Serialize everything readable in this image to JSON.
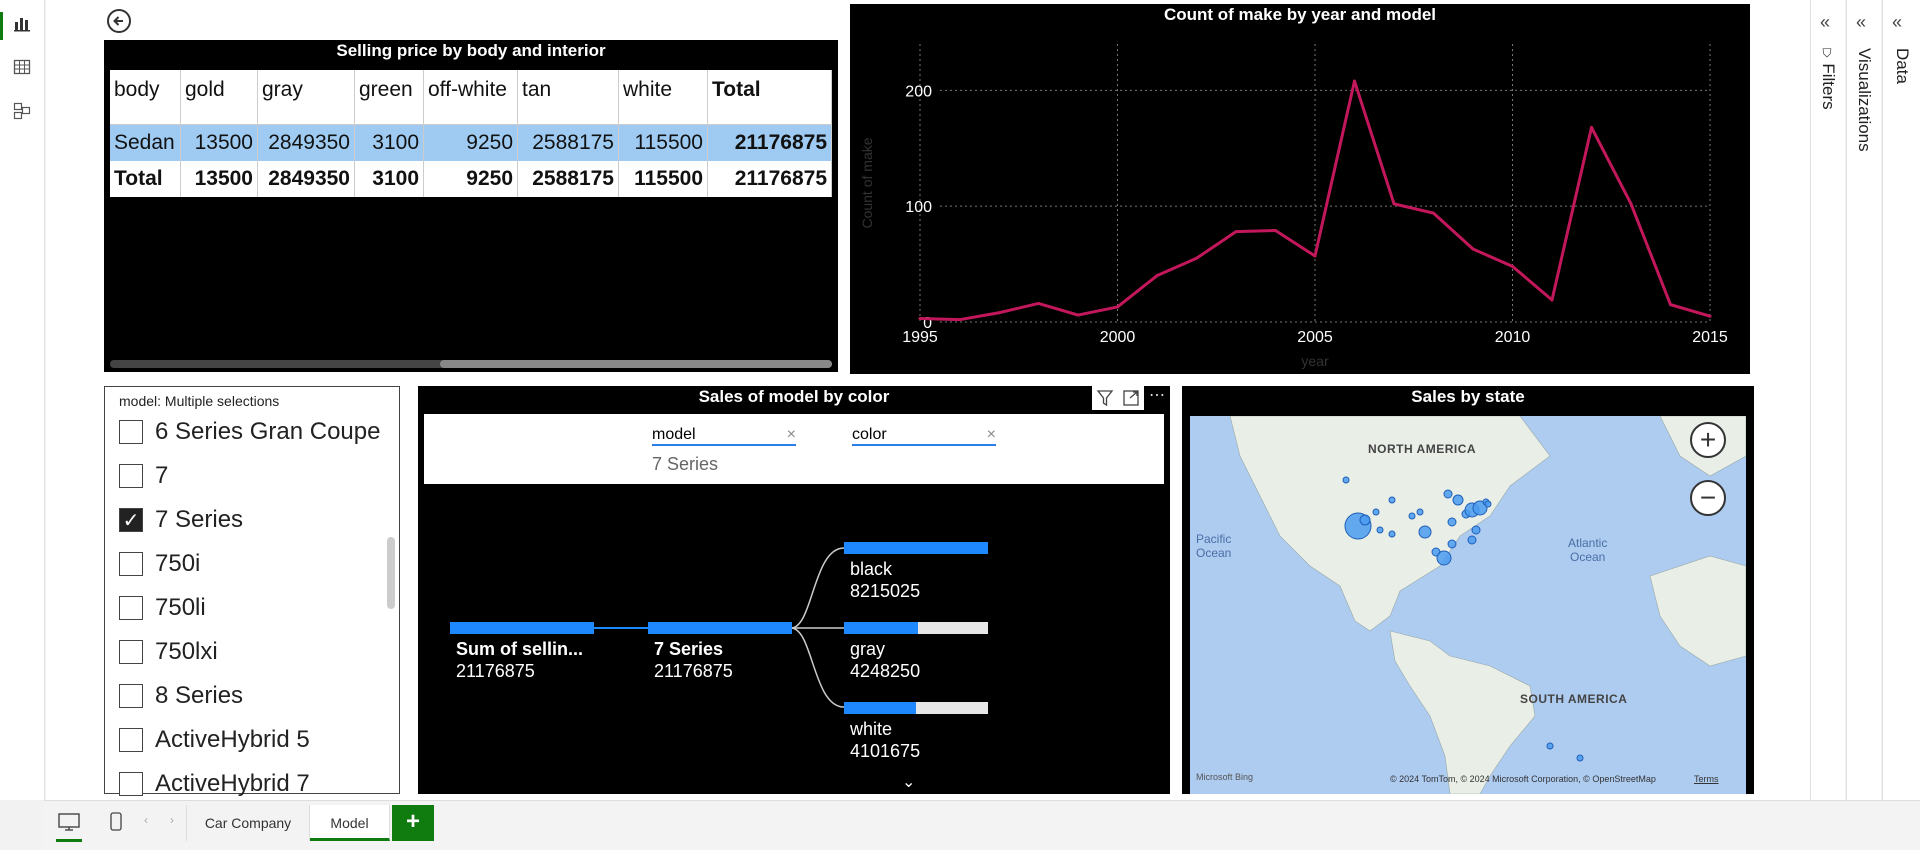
{
  "table": {
    "title": "Selling price by body and interior",
    "headers": [
      "body",
      "gold",
      "gray",
      "green",
      "off-white",
      "tan",
      "white",
      "Total"
    ],
    "rows": [
      [
        "Sedan",
        "13500",
        "2849350",
        "3100",
        "9250",
        "2588175",
        "115500",
        "21176875"
      ],
      [
        "Total",
        "13500",
        "2849350",
        "3100",
        "9250",
        "2588175",
        "115500",
        "21176875"
      ]
    ]
  },
  "line_chart_title": "Count of make by year and model",
  "chart_data": {
    "type": "line",
    "title": "Count of make by year and model",
    "xlabel": "year",
    "ylabel": "Count of make",
    "x": [
      1995,
      1996,
      1997,
      1998,
      1999,
      2000,
      2001,
      2002,
      2003,
      2004,
      2005,
      2006,
      2007,
      2008,
      2009,
      2010,
      2011,
      2012,
      2013,
      2014,
      2015
    ],
    "series": [
      {
        "values": [
          3,
          2,
          8,
          16,
          6,
          13,
          40,
          55,
          78,
          79,
          57,
          208,
          102,
          94,
          63,
          48,
          19,
          168,
          102,
          15,
          5
        ]
      }
    ],
    "xlim": [
      1995,
      2015
    ],
    "ylim": [
      0,
      240
    ],
    "xticks": [
      "1995",
      "2000",
      "2005",
      "2010",
      "2015"
    ],
    "yticks": [
      "0",
      "100",
      "200"
    ],
    "grid": true,
    "line_color": "#c2185b"
  },
  "slicer": {
    "header": "model: Multiple selections",
    "items": [
      {
        "label": "6 Series Gran Coupe",
        "checked": false
      },
      {
        "label": "7",
        "checked": false
      },
      {
        "label": "7 Series",
        "checked": true
      },
      {
        "label": "750i",
        "checked": false
      },
      {
        "label": "750li",
        "checked": false
      },
      {
        "label": "750lxi",
        "checked": false
      },
      {
        "label": "8 Series",
        "checked": false
      },
      {
        "label": "ActiveHybrid 5",
        "checked": false
      },
      {
        "label": "ActiveHybrid 7",
        "checked": false
      }
    ]
  },
  "decomp": {
    "title": "Sales of model by color",
    "field1": "model",
    "field2": "color",
    "selected": "7 Series",
    "root": {
      "label": "Sum of sellin...",
      "value": "21176875"
    },
    "level1": {
      "label": "7 Series",
      "value": "21176875"
    },
    "children": [
      {
        "label": "black",
        "value": "8215025",
        "fraction": 1.0
      },
      {
        "label": "gray",
        "value": "4248250",
        "fraction": 0.517
      },
      {
        "label": "white",
        "value": "4101675",
        "fraction": 0.499
      }
    ]
  },
  "map": {
    "title": "Sales by state",
    "labels": {
      "na": "NORTH AMERICA",
      "sa": "SOUTH AMERICA",
      "pacific": "Pacific\nOcean",
      "atlantic": "Atlantic\nOcean"
    },
    "bing": "Microsoft Bing",
    "copyright": "© 2024 TomTom, © 2024 Microsoft Corporation, © OpenStreetMap",
    "terms": "Terms"
  },
  "panes": {
    "filters": "Filters",
    "visualizations": "Visualizations",
    "data": "Data"
  },
  "tabs": {
    "tab1": "Car Company",
    "tab2": "Model",
    "add": "+"
  },
  "icons": {
    "back": "back-arrow-icon",
    "report": "report-view-icon",
    "table": "table-view-icon",
    "model": "model-view-icon"
  }
}
